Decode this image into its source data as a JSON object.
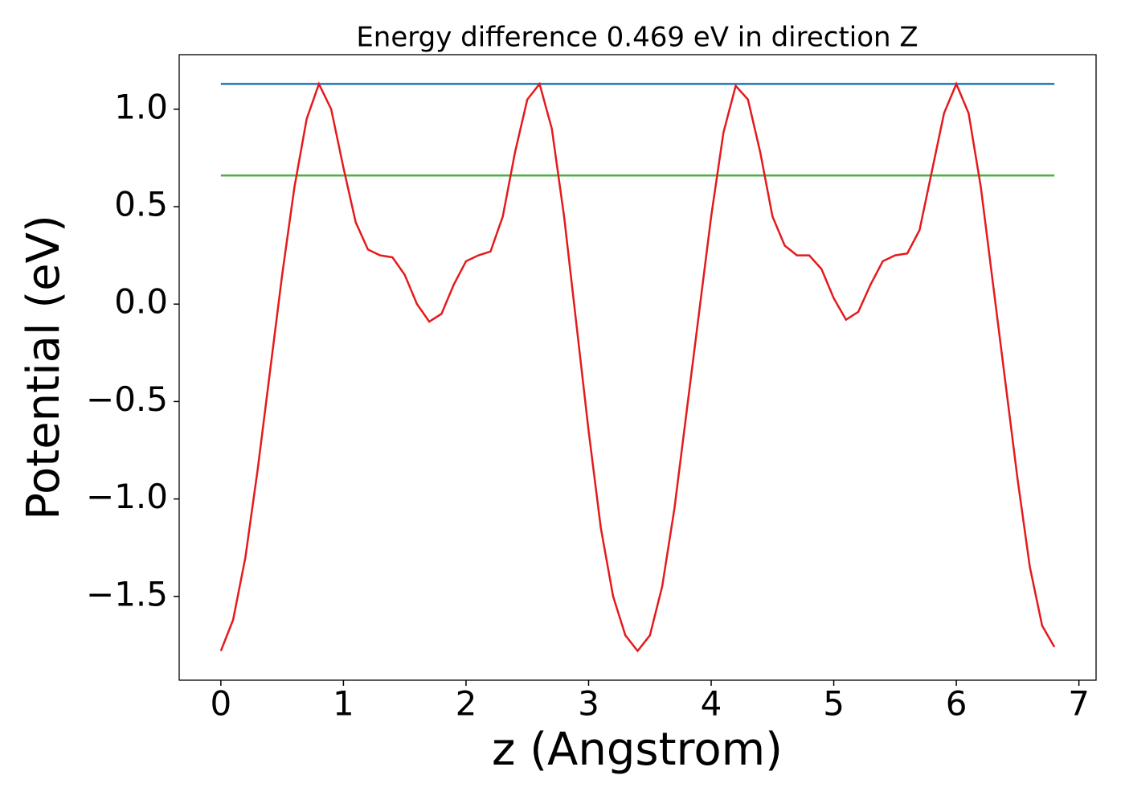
{
  "chart_data": {
    "type": "line",
    "title": "Energy difference 0.469 eV in direction Z",
    "xlabel": "z (Angstrom)",
    "ylabel": "Potential (eV)",
    "xlim": [
      -0.34,
      7.14
    ],
    "ylim": [
      -1.93,
      1.28
    ],
    "xticks": [
      0,
      1,
      2,
      3,
      4,
      5,
      6,
      7
    ],
    "yticks": [
      {
        "value": -1.5,
        "label": "−1.5"
      },
      {
        "value": -1.0,
        "label": "−1.0"
      },
      {
        "value": -0.5,
        "label": "−0.5"
      },
      {
        "value": 0.0,
        "label": "0.0"
      },
      {
        "value": 0.5,
        "label": "0.5"
      },
      {
        "value": 1.0,
        "label": "1.0"
      }
    ],
    "grid": false,
    "series": [
      {
        "color": "#1f77b4",
        "x": [
          0,
          6.8
        ],
        "values": [
          1.13,
          1.13
        ]
      },
      {
        "color": "#4daf4a",
        "x": [
          0,
          6.8
        ],
        "values": [
          0.66,
          0.66
        ]
      },
      {
        "color": "#e41a1c",
        "x": [
          0,
          0.1,
          0.2,
          0.3,
          0.4,
          0.5,
          0.6,
          0.7,
          0.8,
          0.9,
          1.0,
          1.1,
          1.2,
          1.3,
          1.4,
          1.5,
          1.6,
          1.7,
          1.8,
          1.9,
          2.0,
          2.1,
          2.2,
          2.3,
          2.4,
          2.5,
          2.6,
          2.7,
          2.8,
          2.9,
          3.0,
          3.1,
          3.2,
          3.3,
          3.4,
          3.5,
          3.6,
          3.7,
          3.8,
          3.9,
          4.0,
          4.1,
          4.2,
          4.3,
          4.4,
          4.5,
          4.6,
          4.7,
          4.8,
          4.9,
          5.0,
          5.1,
          5.2,
          5.3,
          5.4,
          5.5,
          5.6,
          5.7,
          5.8,
          5.9,
          6.0,
          6.1,
          6.2,
          6.3,
          6.4,
          6.5,
          6.6,
          6.7,
          6.8
        ],
        "values": [
          -1.78,
          -1.62,
          -1.3,
          -0.85,
          -0.35,
          0.15,
          0.6,
          0.95,
          1.13,
          1.0,
          0.7,
          0.42,
          0.28,
          0.25,
          0.24,
          0.15,
          0.0,
          -0.09,
          -0.05,
          0.1,
          0.22,
          0.25,
          0.27,
          0.45,
          0.78,
          1.05,
          1.13,
          0.9,
          0.45,
          -0.1,
          -0.65,
          -1.15,
          -1.5,
          -1.7,
          -1.78,
          -1.7,
          -1.45,
          -1.05,
          -0.55,
          -0.05,
          0.45,
          0.88,
          1.12,
          1.05,
          0.78,
          0.45,
          0.3,
          0.25,
          0.25,
          0.18,
          0.03,
          -0.08,
          -0.04,
          0.1,
          0.22,
          0.25,
          0.26,
          0.38,
          0.68,
          0.98,
          1.13,
          0.98,
          0.6,
          0.1,
          -0.4,
          -0.9,
          -1.35,
          -1.65,
          -1.76
        ]
      }
    ]
  }
}
